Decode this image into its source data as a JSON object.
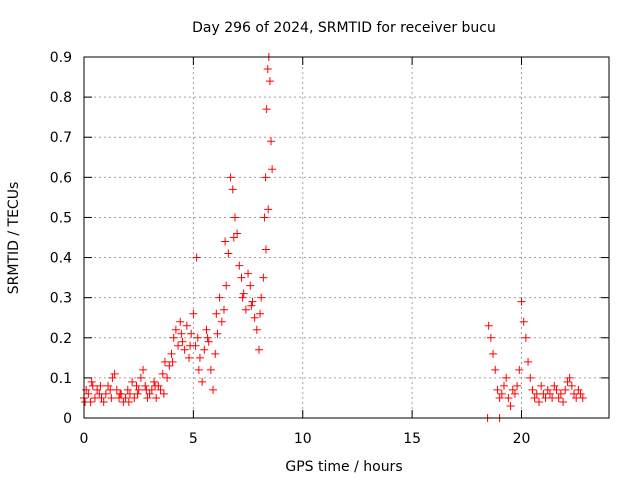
{
  "chart_data": {
    "type": "scatter",
    "title": "Day 296 of 2024, SRMTID for receiver bucu",
    "xlabel": "GPS time / hours",
    "ylabel": "SRMTID / TECUs",
    "xlim": [
      0,
      24
    ],
    "ylim": [
      0,
      0.9
    ],
    "grid": true,
    "marker": "+",
    "x_ticks": [
      0,
      5,
      10,
      15,
      20
    ],
    "y_ticks": [
      0,
      0.1,
      0.2,
      0.3,
      0.4,
      0.5,
      0.6,
      0.7,
      0.8,
      0.9
    ],
    "series": [
      {
        "name": "SRMTID",
        "color": "#ff0000",
        "x": [
          0.0,
          0.1,
          0.2,
          0.3,
          0.4,
          0.5,
          0.6,
          0.7,
          0.8,
          0.9,
          1.0,
          1.1,
          1.2,
          1.3,
          1.4,
          1.5,
          1.6,
          1.7,
          1.8,
          1.9,
          2.0,
          2.1,
          2.2,
          2.3,
          2.4,
          2.5,
          2.6,
          2.7,
          2.8,
          2.9,
          3.0,
          3.1,
          3.2,
          3.3,
          3.4,
          3.5,
          3.6,
          3.7,
          3.8,
          3.9,
          4.0,
          4.1,
          4.2,
          4.3,
          4.4,
          4.5,
          4.6,
          4.7,
          4.8,
          4.9,
          5.0,
          5.1,
          5.15,
          5.2,
          5.3,
          5.4,
          5.5,
          5.6,
          5.7,
          5.8,
          5.9,
          6.0,
          6.1,
          6.2,
          6.3,
          6.4,
          6.5,
          6.6,
          6.7,
          6.8,
          6.9,
          7.0,
          7.1,
          7.2,
          7.3,
          7.4,
          7.5,
          7.6,
          7.7,
          7.8,
          7.9,
          8.0,
          8.1,
          8.2,
          8.25,
          8.3,
          8.35,
          8.4,
          8.45,
          8.5,
          8.55,
          8.6,
          0.05,
          0.35,
          0.75,
          1.25,
          1.65,
          2.05,
          2.45,
          2.85,
          3.25,
          3.65,
          4.05,
          4.45,
          4.85,
          5.25,
          5.65,
          6.05,
          6.45,
          6.85,
          7.25,
          7.65,
          8.05,
          8.32,
          8.42,
          18.5,
          18.6,
          18.7,
          18.8,
          18.9,
          19.0,
          19.1,
          19.2,
          19.3,
          19.4,
          19.5,
          19.6,
          19.7,
          19.8,
          19.9,
          20.0,
          20.1,
          20.2,
          20.3,
          20.4,
          20.5,
          20.6,
          20.7,
          20.8,
          20.9,
          21.0,
          21.1,
          21.2,
          21.3,
          21.4,
          21.5,
          21.6,
          21.7,
          21.8,
          21.9,
          22.0,
          22.1,
          22.2,
          22.3,
          22.4,
          22.5,
          22.6,
          22.7,
          22.8,
          18.45,
          19.0
        ],
        "y": [
          0.05,
          0.07,
          0.06,
          0.04,
          0.08,
          0.05,
          0.07,
          0.06,
          0.05,
          0.04,
          0.06,
          0.08,
          0.07,
          0.1,
          0.11,
          0.07,
          0.05,
          0.06,
          0.04,
          0.05,
          0.07,
          0.06,
          0.09,
          0.05,
          0.08,
          0.07,
          0.1,
          0.12,
          0.08,
          0.05,
          0.06,
          0.07,
          0.09,
          0.05,
          0.08,
          0.07,
          0.11,
          0.14,
          0.1,
          0.13,
          0.16,
          0.2,
          0.22,
          0.18,
          0.24,
          0.19,
          0.17,
          0.23,
          0.15,
          0.21,
          0.26,
          0.18,
          0.4,
          0.2,
          0.15,
          0.09,
          0.17,
          0.22,
          0.19,
          0.12,
          0.07,
          0.16,
          0.21,
          0.3,
          0.24,
          0.27,
          0.33,
          0.41,
          0.6,
          0.57,
          0.5,
          0.46,
          0.38,
          0.35,
          0.31,
          0.27,
          0.36,
          0.33,
          0.29,
          0.25,
          0.22,
          0.17,
          0.3,
          0.35,
          0.5,
          0.6,
          0.77,
          0.87,
          0.9,
          0.84,
          0.69,
          0.62,
          0.04,
          0.09,
          0.08,
          0.05,
          0.06,
          0.04,
          0.06,
          0.07,
          0.08,
          0.06,
          0.14,
          0.21,
          0.18,
          0.12,
          0.2,
          0.26,
          0.44,
          0.45,
          0.3,
          0.28,
          0.26,
          0.42,
          0.52,
          0.23,
          0.2,
          0.16,
          0.12,
          0.07,
          0.05,
          0.06,
          0.08,
          0.1,
          0.05,
          0.03,
          0.07,
          0.06,
          0.08,
          0.12,
          0.29,
          0.24,
          0.2,
          0.14,
          0.1,
          0.07,
          0.05,
          0.06,
          0.04,
          0.08,
          0.06,
          0.05,
          0.07,
          0.06,
          0.05,
          0.08,
          0.07,
          0.05,
          0.06,
          0.04,
          0.07,
          0.09,
          0.1,
          0.08,
          0.06,
          0.05,
          0.07,
          0.06,
          0.05,
          0.0,
          0.0
        ]
      }
    ]
  }
}
